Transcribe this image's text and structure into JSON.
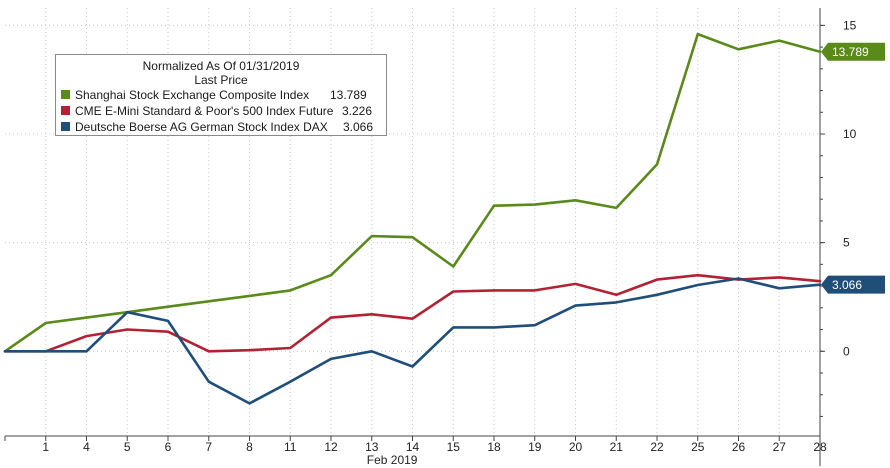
{
  "chart_data": {
    "type": "line",
    "legend": {
      "title": "Normalized As Of 01/31/2019",
      "subtitle": "Last Price",
      "placement": "top-left"
    },
    "x_categories": [
      "",
      "1",
      "4",
      "5",
      "6",
      "7",
      "8",
      "11",
      "12",
      "13",
      "14",
      "15",
      "18",
      "19",
      "20",
      "21",
      "22",
      "25",
      "26",
      "27",
      "28"
    ],
    "xlabel": "Feb 2019",
    "y_ticks": [
      "15",
      "10",
      "5",
      "0"
    ],
    "ylim": [
      -3.9,
      15.8
    ],
    "grid": true,
    "series": [
      {
        "name": "Shanghai Stock Exchange Composite Index",
        "color": "#5a8a1a",
        "last_value": "13.789",
        "values": [
          0,
          1.3,
          1.55,
          1.8,
          2.05,
          2.3,
          2.55,
          2.8,
          3.5,
          5.3,
          5.25,
          3.9,
          6.7,
          6.75,
          6.95,
          6.6,
          8.6,
          14.6,
          13.9,
          14.3,
          13.789
        ]
      },
      {
        "name": "CME E-Mini Standard & Poor's 500 Index Future",
        "color": "#b22234",
        "last_value": "3.226",
        "values": [
          0,
          0,
          0.7,
          1.0,
          0.9,
          0,
          0.05,
          0.15,
          1.55,
          1.7,
          1.5,
          2.75,
          2.8,
          2.8,
          3.1,
          2.6,
          3.3,
          3.5,
          3.3,
          3.4,
          3.226
        ]
      },
      {
        "name": "Deutsche Boerse AG German Stock Index DAX",
        "color": "#1f4e79",
        "last_value": "3.066",
        "values": [
          0,
          0,
          0,
          1.8,
          1.4,
          -1.4,
          -2.4,
          -1.4,
          -0.35,
          0,
          -0.7,
          1.1,
          1.1,
          1.2,
          2.1,
          2.25,
          2.6,
          3.05,
          3.35,
          2.9,
          3.066
        ]
      }
    ]
  }
}
